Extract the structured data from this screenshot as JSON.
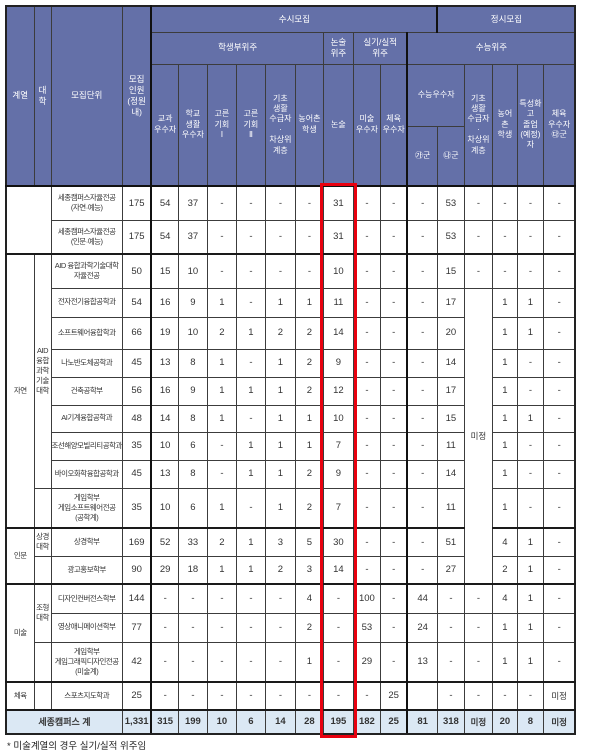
{
  "colors": {
    "header_bg": "#6470a8",
    "header_text": "#ffffff",
    "total_row_bg": "#dbe8f4",
    "highlight_box": "#e8000f",
    "grid_line": "#3c3c3c"
  },
  "footnote": "* 미술계열의 경우 실기/실적 위주임",
  "table": {
    "header_rows": [
      [
        {
          "t": "계열",
          "rs": 4
        },
        {
          "t": "대학",
          "rs": 4
        },
        {
          "t": "모집단위",
          "rs": 4
        },
        {
          "t": "모집\n인원\n(정원내)",
          "rs": 4,
          "cls": "bR2"
        },
        {
          "t": "수시모집",
          "cs": 10,
          "cls": "bR2"
        },
        {
          "t": "정시모집",
          "cs": 6
        }
      ],
      [
        {
          "t": "학생부위주",
          "cs": 6
        },
        {
          "t": "논술\n위주"
        },
        {
          "t": "실기/실적\n위주",
          "cs": 2,
          "cls": "bR2"
        },
        {
          "t": "수능위주",
          "cs": 6
        }
      ],
      [
        {
          "t": "교과\n우수자",
          "rs": 2
        },
        {
          "t": "학교\n생활\n우수자",
          "rs": 2
        },
        {
          "t": "고른\n기회\nⅠ",
          "rs": 2
        },
        {
          "t": "고른\n기회\nⅡ",
          "rs": 2
        },
        {
          "t": "기초\n생활\n수급자\n·\n차상위\n계층",
          "rs": 2
        },
        {
          "t": "농어촌\n학생",
          "rs": 2
        },
        {
          "t": "논술",
          "rs": 2
        },
        {
          "t": "미술\n우수자",
          "rs": 2
        },
        {
          "t": "체육\n우수자",
          "rs": 2,
          "cls": "bR2"
        },
        {
          "t": "수능우수자",
          "cs": 2
        },
        {
          "t": "기초\n생활\n수급자\n·\n차상위\n계층",
          "rs": 2
        },
        {
          "t": "농어촌\n학생",
          "rs": 2
        },
        {
          "t": "특성화\n고\n졸업\n(예정)\n자",
          "rs": 2
        },
        {
          "t": "체육\n우수자\n㉰군",
          "rs": 2
        }
      ],
      [
        {
          "t": "㉮군"
        },
        {
          "t": "㉯군"
        }
      ]
    ],
    "body_rows": [
      {
        "cells": [
          {
            "t": "",
            "cs": 2,
            "rs": 2,
            "cls": "grp"
          },
          {
            "t": "세종캠퍼스자율전공\n(자연·예능)",
            "cls": "unit"
          },
          {
            "t": "175",
            "cls": "bR2"
          },
          "54",
          "37",
          "-",
          "-",
          "-",
          "-",
          {
            "t": "31",
            "cls": "nonsul"
          },
          "-",
          {
            "t": "-",
            "cls": "bR2"
          },
          "-",
          "53",
          "-",
          "-",
          "-",
          "-"
        ]
      },
      {
        "cells": [
          {
            "t": "세종캠퍼스자율전공\n(인문·예능)",
            "cls": "unit"
          },
          {
            "t": "175",
            "cls": "bR2"
          },
          "54",
          "37",
          "-",
          "-",
          "-",
          "-",
          {
            "t": "31",
            "cls": "nonsul"
          },
          "-",
          {
            "t": "-",
            "cls": "bR2"
          },
          "-",
          "53",
          "-",
          "-",
          "-",
          "-"
        ]
      },
      {
        "sec": true,
        "cells": [
          {
            "t": "자연",
            "rs": 9,
            "cls": "grp"
          },
          {
            "t": "AID\n융합\n과학\n기술\n대학",
            "rs": 8,
            "cls": "grp"
          },
          {
            "t": "AID 융합과학기술대학\n자율전공",
            "cls": "unit"
          },
          {
            "t": "50",
            "cls": "bR2"
          },
          "15",
          "10",
          "-",
          "-",
          "-",
          "-",
          {
            "t": "10",
            "cls": "nonsul"
          },
          "-",
          {
            "t": "-",
            "cls": "bR2"
          },
          "-",
          "15",
          "-",
          "-",
          "-",
          "-"
        ]
      },
      {
        "cells": [
          {
            "t": "전자전기융합공학과",
            "cls": "unit"
          },
          {
            "t": "54",
            "cls": "bR2"
          },
          "16",
          "9",
          "1",
          "-",
          "1",
          "1",
          {
            "t": "11",
            "cls": "nonsul"
          },
          "-",
          {
            "t": "-",
            "cls": "bR2"
          },
          "-",
          "17",
          {
            "t": "미정",
            "rs": 10,
            "cls": "mijeong"
          },
          "1",
          "1",
          "-"
        ]
      },
      {
        "cells": [
          {
            "t": "소프트웨어융합학과",
            "cls": "unit"
          },
          {
            "t": "66",
            "cls": "bR2"
          },
          "19",
          "10",
          "2",
          "1",
          "2",
          "2",
          {
            "t": "14",
            "cls": "nonsul"
          },
          "-",
          {
            "t": "-",
            "cls": "bR2"
          },
          "-",
          "20",
          "1",
          "1",
          "-"
        ]
      },
      {
        "cells": [
          {
            "t": "나노반도체공학과",
            "cls": "unit"
          },
          {
            "t": "45",
            "cls": "bR2"
          },
          "13",
          "8",
          "1",
          "-",
          "1",
          "2",
          {
            "t": "9",
            "cls": "nonsul"
          },
          "-",
          {
            "t": "-",
            "cls": "bR2"
          },
          "-",
          "14",
          "1",
          "-",
          "-"
        ]
      },
      {
        "cells": [
          {
            "t": "건축공학부",
            "cls": "unit"
          },
          {
            "t": "56",
            "cls": "bR2"
          },
          "16",
          "9",
          "1",
          "1",
          "1",
          "2",
          {
            "t": "12",
            "cls": "nonsul"
          },
          "-",
          {
            "t": "-",
            "cls": "bR2"
          },
          "-",
          "17",
          "1",
          "-",
          "-"
        ]
      },
      {
        "cells": [
          {
            "t": "AI기계융합공학과",
            "cls": "unit"
          },
          {
            "t": "48",
            "cls": "bR2"
          },
          "14",
          "8",
          "1",
          "-",
          "1",
          "1",
          {
            "t": "10",
            "cls": "nonsul"
          },
          "-",
          {
            "t": "-",
            "cls": "bR2"
          },
          "-",
          "15",
          "1",
          "1",
          "-"
        ]
      },
      {
        "cells": [
          {
            "t": "조선해양모빌리티공학과",
            "cls": "unit"
          },
          {
            "t": "35",
            "cls": "bR2"
          },
          "10",
          "6",
          "-",
          "1",
          "1",
          "1",
          {
            "t": "7",
            "cls": "nonsul"
          },
          "-",
          {
            "t": "-",
            "cls": "bR2"
          },
          "-",
          "11",
          "1",
          "-",
          "-"
        ]
      },
      {
        "cells": [
          {
            "t": "바이오화학융합공학과",
            "cls": "unit"
          },
          {
            "t": "45",
            "cls": "bR2"
          },
          "13",
          "8",
          "-",
          "1",
          "1",
          "2",
          {
            "t": "9",
            "cls": "nonsul"
          },
          "-",
          {
            "t": "-",
            "cls": "bR2"
          },
          "-",
          "14",
          "1",
          "-",
          "-"
        ]
      },
      {
        "cells": [
          {
            "t": "",
            "cls": "grp"
          },
          {
            "t": "게임학부\n게임소프트웨어전공\n(공학계)",
            "cls": "unit"
          },
          {
            "t": "35",
            "cls": "bR2"
          },
          "10",
          "6",
          "1",
          "-",
          "1",
          "2",
          {
            "t": "7",
            "cls": "nonsul"
          },
          "-",
          {
            "t": "-",
            "cls": "bR2"
          },
          "-",
          "11",
          "1",
          "-",
          "-"
        ]
      },
      {
        "sec": true,
        "cells": [
          {
            "t": "인문",
            "rs": 2,
            "cls": "grp"
          },
          {
            "t": "상경\n대학",
            "cls": "grp"
          },
          {
            "t": "상경학부",
            "cls": "unit"
          },
          {
            "t": "169",
            "cls": "bR2"
          },
          "52",
          "33",
          "2",
          "1",
          "3",
          "5",
          {
            "t": "30",
            "cls": "nonsul"
          },
          "-",
          {
            "t": "-",
            "cls": "bR2"
          },
          "-",
          "51",
          "4",
          "1",
          "-"
        ]
      },
      {
        "cells": [
          {
            "t": "",
            "cls": "grp"
          },
          {
            "t": "광고홍보학부",
            "cls": "unit"
          },
          {
            "t": "90",
            "cls": "bR2"
          },
          "29",
          "18",
          "1",
          "1",
          "2",
          "3",
          {
            "t": "14",
            "cls": "nonsul"
          },
          "-",
          {
            "t": "-",
            "cls": "bR2"
          },
          "-",
          "27",
          "2",
          "1",
          "-"
        ]
      },
      {
        "sec": true,
        "cells": [
          {
            "t": "미술",
            "rs": 3,
            "cls": "grp"
          },
          {
            "t": "조형\n대학",
            "rs": 2,
            "cls": "grp"
          },
          {
            "t": "디자인컨버전스학부",
            "cls": "unit"
          },
          {
            "t": "144",
            "cls": "bR2"
          },
          "-",
          "-",
          "-",
          "-",
          "-",
          "4",
          {
            "t": "-",
            "cls": "nonsul"
          },
          "100",
          {
            "t": "-",
            "cls": "bR2"
          },
          "44",
          "-",
          "-",
          "4",
          "1",
          "-"
        ]
      },
      {
        "cells": [
          {
            "t": "영상애니메이션학부",
            "cls": "unit"
          },
          {
            "t": "77",
            "cls": "bR2"
          },
          "-",
          "-",
          "-",
          "-",
          "-",
          "2",
          {
            "t": "-",
            "cls": "nonsul"
          },
          "53",
          {
            "t": "-",
            "cls": "bR2"
          },
          "24",
          "-",
          "-",
          "1",
          "1",
          "-"
        ]
      },
      {
        "cells": [
          {
            "t": "",
            "cls": "grp"
          },
          {
            "t": "게임학부\n게임그래픽디자인전공\n(미술계)",
            "cls": "unit"
          },
          {
            "t": "42",
            "cls": "bR2"
          },
          "-",
          "-",
          "-",
          "-",
          "-",
          "1",
          {
            "t": "-",
            "cls": "nonsul"
          },
          "29",
          {
            "t": "-",
            "cls": "bR2"
          },
          "13",
          "-",
          "-",
          "1",
          "1",
          "-"
        ]
      },
      {
        "sec": true,
        "cells": [
          {
            "t": "체육",
            "cls": "grp"
          },
          {
            "t": "",
            "cls": "grp"
          },
          {
            "t": "스포츠지도학과",
            "cls": "unit"
          },
          {
            "t": "25",
            "cls": "bR2"
          },
          "-",
          "-",
          "-",
          "-",
          "-",
          "-",
          {
            "t": "-",
            "cls": "nonsul"
          },
          "-",
          {
            "t": "25",
            "cls": "bR2"
          },
          "",
          "-",
          "-",
          "-",
          "-",
          {
            "t": "미정",
            "cls": "mijeong"
          }
        ]
      },
      {
        "total": true,
        "cells": [
          {
            "t": "세종캠퍼스 계",
            "cs": 3,
            "cls": "unit"
          },
          {
            "t": "1,331",
            "cls": "bR2"
          },
          "315",
          "199",
          "10",
          "6",
          "14",
          "28",
          {
            "t": "195",
            "cls": "nonsul"
          },
          "182",
          {
            "t": "25",
            "cls": "bR2"
          },
          "81",
          "318",
          {
            "t": "미정",
            "cls": "mijeong"
          },
          "20",
          "8",
          {
            "t": "미정",
            "cls": "mijeong"
          }
        ]
      }
    ]
  }
}
